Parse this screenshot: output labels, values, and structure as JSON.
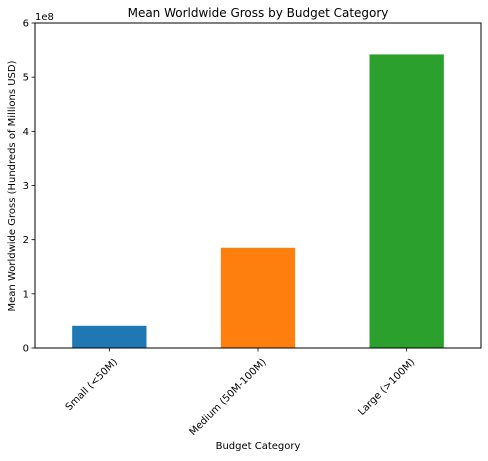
{
  "chart_data": {
    "type": "bar",
    "title": "Mean Worldwide Gross by Budget Category",
    "xlabel": "Budget Category",
    "ylabel": "Mean Worldwide Gross (Hundreds of Millions USD)",
    "offset_label": "1e8",
    "categories": [
      "Small (<50M)",
      "Medium (50M-100M)",
      "Large (>100M)"
    ],
    "values": [
      0.41,
      1.85,
      5.42
    ],
    "colors": [
      "#1f77b4",
      "#ff7f0e",
      "#2ca02c"
    ],
    "ylim": [
      0,
      6
    ],
    "yticks": [
      0,
      1,
      2,
      3,
      4,
      5,
      6
    ],
    "ytick_labels": [
      "0",
      "1",
      "2",
      "3",
      "4",
      "5",
      "6"
    ],
    "grid": false,
    "legend": "none"
  }
}
